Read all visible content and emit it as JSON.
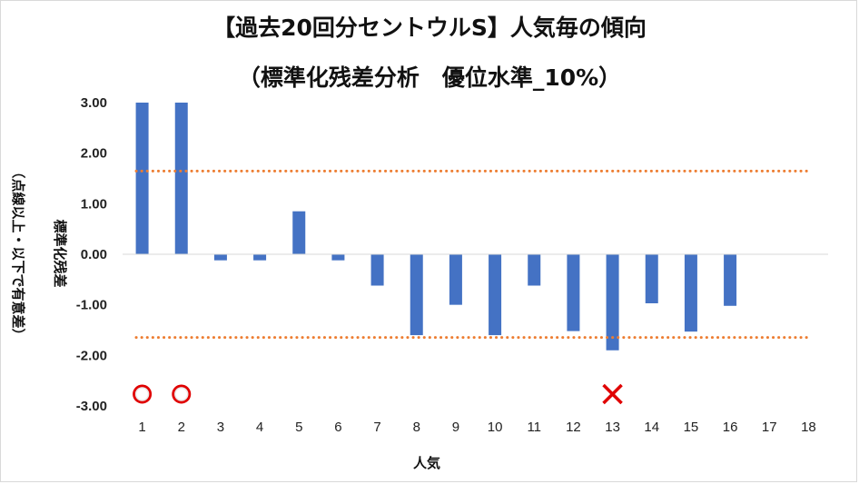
{
  "chart_data": {
    "type": "bar",
    "title": "【過去20回分セントウルS】人気毎の傾向",
    "subtitle": "（標準化残差分析　優位水準_10%）",
    "xlabel": "人気",
    "ylabel": "標準化残差",
    "ylabel_note": "（点線以上・以下で有意差）",
    "categories": [
      "1",
      "2",
      "3",
      "4",
      "5",
      "6",
      "7",
      "8",
      "9",
      "10",
      "11",
      "12",
      "13",
      "14",
      "15",
      "16",
      "17",
      "18"
    ],
    "values": [
      3.0,
      3.0,
      -0.12,
      -0.12,
      0.85,
      -0.12,
      -0.62,
      -1.6,
      -1.0,
      -1.6,
      -0.62,
      -1.52,
      -1.9,
      -0.97,
      -1.53,
      -1.02,
      null,
      null
    ],
    "ylim": [
      -3.0,
      3.0
    ],
    "yticks": [
      "3.00",
      "2.00",
      "1.00",
      "0.00",
      "-1.00",
      "-2.00",
      "-3.00"
    ],
    "ytick_values": [
      3,
      2,
      1,
      0,
      -1,
      -2,
      -3
    ],
    "threshold_lines": [
      1.645,
      -1.645
    ],
    "markers": [
      {
        "category": "1",
        "symbol": "circle"
      },
      {
        "category": "2",
        "symbol": "circle"
      },
      {
        "category": "13",
        "symbol": "cross"
      }
    ],
    "grid": false,
    "colors": {
      "bar": "#4472c4",
      "threshold": "#ed7d31",
      "marker": "#e00000"
    }
  }
}
